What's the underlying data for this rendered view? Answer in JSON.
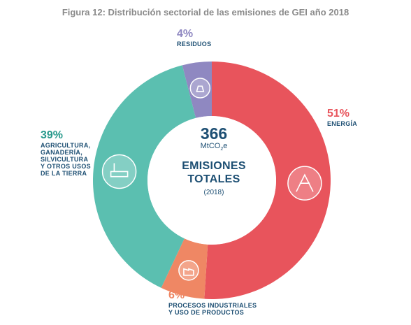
{
  "figure": {
    "title": "Figura 12: Distribución sectorial de las emisiones de GEI año 2018"
  },
  "center": {
    "value": "366",
    "unit_main": "MtCO",
    "unit_sub": "2",
    "unit_tail": "e",
    "line1": "EMISIONES",
    "line2": "TOTALES",
    "year": "(2018)"
  },
  "icons": {
    "energy": "power-tower-icon",
    "agriculture": "cow-tree-icon",
    "industry": "factory-icon",
    "waste": "waste-bag-icon"
  },
  "chart_data": {
    "type": "pie",
    "donut": true,
    "title": "Figura 12: Distribución sectorial de las emisiones de GEI año 2018",
    "total": 366,
    "total_unit": "MtCO2e",
    "categories": [
      "ENERGÍA",
      "PROCESOS INDUSTRIALES Y USO DE PRODUCTOS",
      "AGRICULTURA, GANADERÍA, SILVICULTURA Y OTROS USOS DE LA TIERRA",
      "RESIDUOS"
    ],
    "values": [
      51,
      6,
      39,
      4
    ],
    "value_labels": [
      "51%",
      "6%",
      "39%",
      "4%"
    ],
    "display_lines": [
      "ENERGÍA",
      "PROCESOS INDUSTRIALES\nY USO DE PRODUCTOS",
      "AGRICULTURA,\nGANADERÍA,\nSILVICULTURA\nY OTROS USOS\nDE LA TIERRA",
      "RESIDUOS"
    ],
    "colors": [
      "#e8545c",
      "#ef8764",
      "#5bbfb0",
      "#8f88c1"
    ],
    "label_colors": [
      "#e8545c",
      "#ef8764",
      "#27998b",
      "#8f88c1"
    ],
    "category_text_color": "#1d4f73"
  }
}
